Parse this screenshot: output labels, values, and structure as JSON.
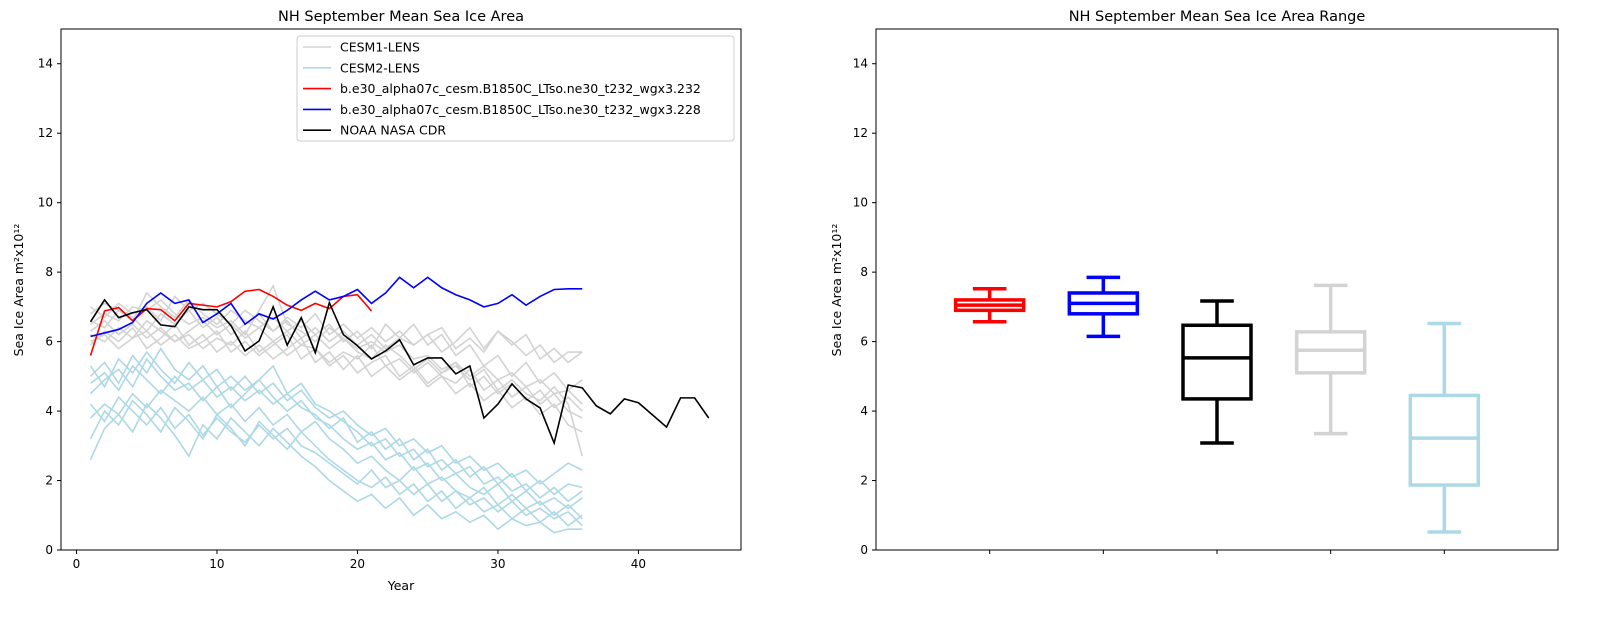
{
  "chart_data": [
    {
      "type": "line",
      "title": "NH September Mean Sea Ice Area",
      "xlabel": "Year",
      "ylabel": "Sea Ice Area m²x10¹²",
      "xlim": [
        -1.1,
        47.3
      ],
      "ylim": [
        0,
        15
      ],
      "xticks": [
        0,
        10,
        20,
        30,
        40
      ],
      "yticks": [
        0,
        2,
        4,
        6,
        8,
        10,
        12,
        14
      ],
      "grid": false,
      "legend_position": "top-center",
      "legend": [
        {
          "label": "CESM1-LENS",
          "color": "#d3d3d3"
        },
        {
          "label": "CESM2-LENS",
          "color": "#add8e6"
        },
        {
          "label": "b.e30_alpha07c_cesm.B1850C_LTso.ne30_t232_wgx3.232",
          "color": "#ff0000"
        },
        {
          "label": "b.e30_alpha07c_cesm.B1850C_LTso.ne30_t232_wgx3.228",
          "color": "#0000ff"
        },
        {
          "label": "NOAA NASA CDR",
          "color": "#000000"
        }
      ],
      "ensembles": [
        {
          "name": "CESM1-LENS",
          "color": "#d3d3d3",
          "members": [
            [
              6.5,
              6.8,
              6.6,
              7.0,
              6.9,
              7.2,
              6.8,
              6.5,
              6.7,
              6.4,
              6.6,
              6.2,
              6.9,
              7.6,
              6.5,
              6.3,
              6.0,
              6.4,
              6.1,
              5.8,
              6.0,
              5.7,
              5.9,
              5.5,
              5.6,
              5.2,
              5.4,
              5.0,
              5.3,
              4.9,
              5.1,
              4.7,
              4.9,
              4.5,
              4.6,
              4.2
            ],
            [
              6.2,
              6.0,
              6.4,
              6.1,
              6.6,
              6.3,
              6.0,
              6.2,
              5.8,
              6.1,
              5.9,
              6.3,
              5.7,
              6.0,
              5.6,
              5.9,
              5.8,
              5.4,
              5.7,
              5.5,
              5.9,
              5.3,
              5.5,
              5.1,
              5.4,
              5.0,
              4.8,
              5.2,
              4.6,
              4.9,
              4.4,
              4.7,
              4.2,
              4.5,
              4.0,
              3.8
            ],
            [
              6.8,
              7.1,
              6.9,
              6.6,
              7.4,
              7.0,
              6.7,
              7.2,
              6.8,
              6.5,
              6.9,
              6.6,
              6.4,
              6.7,
              6.3,
              6.6,
              6.2,
              6.5,
              6.0,
              6.3,
              5.8,
              6.5,
              6.1,
              5.9,
              6.2,
              5.7,
              6.0,
              6.4,
              5.8,
              6.3,
              6.0,
              5.6,
              5.9,
              5.4,
              5.7,
              5.7
            ],
            [
              5.9,
              6.3,
              6.0,
              6.4,
              5.8,
              6.1,
              6.5,
              5.9,
              6.2,
              5.7,
              6.0,
              5.6,
              5.9,
              5.5,
              5.8,
              6.1,
              5.4,
              5.7,
              5.2,
              5.6,
              5.0,
              5.3,
              4.9,
              5.2,
              4.7,
              5.0,
              4.5,
              4.8,
              4.3,
              4.6,
              4.1,
              4.4,
              3.9,
              4.2,
              3.6,
              3.4
            ],
            [
              6.6,
              6.4,
              6.9,
              6.7,
              6.3,
              6.8,
              6.5,
              6.9,
              6.4,
              6.7,
              6.2,
              6.5,
              6.8,
              6.3,
              6.6,
              6.1,
              6.4,
              6.0,
              6.3,
              5.9,
              6.2,
              5.8,
              6.1,
              6.5,
              5.9,
              6.2,
              5.6,
              5.9,
              5.3,
              5.6,
              5.0,
              5.4,
              4.8,
              5.1,
              4.6,
              4.9
            ],
            [
              6.0,
              6.2,
              5.8,
              6.1,
              6.3,
              5.9,
              6.2,
              5.8,
              6.0,
              6.3,
              5.7,
              6.0,
              5.6,
              5.9,
              6.2,
              5.5,
              5.8,
              5.3,
              5.6,
              5.1,
              5.4,
              5.6,
              5.0,
              5.3,
              4.8,
              5.1,
              5.4,
              4.7,
              5.0,
              4.5,
              4.8,
              4.3,
              4.6,
              4.1,
              4.4,
              4.0
            ],
            [
              7.0,
              6.7,
              7.1,
              6.8,
              7.0,
              6.6,
              7.3,
              6.9,
              7.1,
              6.8,
              6.5,
              6.9,
              6.6,
              6.3,
              6.7,
              6.4,
              6.8,
              6.2,
              6.5,
              6.1,
              6.4,
              6.0,
              6.3,
              5.9,
              6.2,
              6.4,
              5.8,
              6.1,
              5.7,
              6.3,
              5.9,
              6.2,
              5.5,
              5.8,
              5.4,
              5.7
            ],
            [
              6.3,
              6.6,
              6.2,
              6.5,
              6.1,
              6.4,
              6.0,
              6.3,
              6.6,
              6.2,
              6.5,
              6.1,
              6.4,
              6.0,
              6.3,
              5.9,
              6.2,
              5.8,
              6.1,
              5.7,
              5.5,
              5.9,
              5.6,
              5.2,
              5.5,
              5.1,
              5.3,
              4.9,
              5.2,
              4.6,
              4.9,
              4.5,
              4.3,
              4.7,
              4.2,
              2.7
            ]
          ]
        },
        {
          "name": "CESM2-LENS",
          "color": "#add8e6",
          "members": [
            [
              4.5,
              4.9,
              5.2,
              4.7,
              5.5,
              5.0,
              4.6,
              4.8,
              4.3,
              4.7,
              4.1,
              4.5,
              4.9,
              4.4,
              4.0,
              4.3,
              3.8,
              3.6,
              3.2,
              2.9,
              3.1,
              2.6,
              2.8,
              2.3,
              2.5,
              2.0,
              2.2,
              1.8,
              1.6,
              1.9,
              1.4,
              1.7,
              1.3,
              1.5,
              1.2,
              1.5
            ],
            [
              3.8,
              4.2,
              3.9,
              4.5,
              4.1,
              4.6,
              4.3,
              4.0,
              4.4,
              3.9,
              4.2,
              3.7,
              4.1,
              3.6,
              3.9,
              3.4,
              3.7,
              3.2,
              2.9,
              2.5,
              2.7,
              2.3,
              2.0,
              2.4,
              1.9,
              2.1,
              1.7,
              1.5,
              1.8,
              1.3,
              1.6,
              1.2,
              1.4,
              1.0,
              1.3,
              0.9
            ],
            [
              5.0,
              5.4,
              4.8,
              5.6,
              5.1,
              5.8,
              5.2,
              4.9,
              5.3,
              4.7,
              5.0,
              4.6,
              4.9,
              5.3,
              4.5,
              4.8,
              4.2,
              4.0,
              3.7,
              3.4,
              3.0,
              3.2,
              2.7,
              2.9,
              2.4,
              2.6,
              2.2,
              2.4,
              1.9,
              2.1,
              1.7,
              1.9,
              1.5,
              1.8,
              1.4,
              1.7
            ],
            [
              4.2,
              3.7,
              4.4,
              4.0,
              3.6,
              4.1,
              3.5,
              3.9,
              3.3,
              3.8,
              3.4,
              3.1,
              3.6,
              3.2,
              3.5,
              3.0,
              2.8,
              2.5,
              2.2,
              1.9,
              2.3,
              1.8,
              2.0,
              1.6,
              1.9,
              1.4,
              1.7,
              1.3,
              1.5,
              1.1,
              1.4,
              1.0,
              1.2,
              0.9,
              1.1,
              0.7
            ],
            [
              4.8,
              5.1,
              4.6,
              5.3,
              4.9,
              4.5,
              5.0,
              4.6,
              4.9,
              4.4,
              4.7,
              4.3,
              4.6,
              4.2,
              4.5,
              4.1,
              3.9,
              3.5,
              3.8,
              3.1,
              3.4,
              2.9,
              3.2,
              2.6,
              2.9,
              2.3,
              2.6,
              2.1,
              2.4,
              1.9,
              2.2,
              1.7,
              2.0,
              1.6,
              1.9,
              1.8
            ],
            [
              3.2,
              4.0,
              3.6,
              4.3,
              3.9,
              3.4,
              4.1,
              3.7,
              3.2,
              3.9,
              3.5,
              3.0,
              3.7,
              3.3,
              2.9,
              3.4,
              3.0,
              2.6,
              2.3,
              2.0,
              1.8,
              2.1,
              1.6,
              1.9,
              1.4,
              1.7,
              1.2,
              1.5,
              1.1,
              1.3,
              0.9,
              1.2,
              0.8,
              1.1,
              0.7,
              1.0
            ],
            [
              5.3,
              4.7,
              5.5,
              5.1,
              5.7,
              5.2,
              4.8,
              5.4,
              4.9,
              5.2,
              4.6,
              5.0,
              4.5,
              4.8,
              4.3,
              4.6,
              4.1,
              3.8,
              4.0,
              3.6,
              3.3,
              3.5,
              3.0,
              3.2,
              2.8,
              3.0,
              2.5,
              2.7,
              2.3,
              2.5,
              2.1,
              2.3,
              1.9,
              2.2,
              2.5,
              2.3
            ],
            [
              2.6,
              3.5,
              3.9,
              3.4,
              4.2,
              3.8,
              3.3,
              2.7,
              3.6,
              3.2,
              3.8,
              3.4,
              3.0,
              3.5,
              3.1,
              2.7,
              2.4,
              2.0,
              1.7,
              1.4,
              1.6,
              1.2,
              1.5,
              1.0,
              1.3,
              0.9,
              1.1,
              0.8,
              1.0,
              0.6,
              0.9,
              0.7,
              0.8,
              0.5,
              0.6,
              0.6
            ]
          ]
        }
      ],
      "series": [
        {
          "name": "b.e30_alpha07c_cesm.B1850C_LTso.ne30_t232_wgx3.232",
          "color": "#ff0000",
          "values": [
            5.6,
            6.88,
            6.98,
            6.6,
            6.95,
            6.92,
            6.6,
            7.1,
            7.05,
            7.0,
            7.15,
            7.45,
            7.5,
            7.3,
            7.05,
            6.9,
            7.1,
            6.95,
            7.3,
            7.35,
            6.88
          ]
        },
        {
          "name": "b.e30_alpha07c_cesm.B1850C_LTso.ne30_t232_wgx3.228",
          "color": "#0000ff",
          "values": [
            6.15,
            6.25,
            6.35,
            6.55,
            7.1,
            7.4,
            7.1,
            7.2,
            6.55,
            6.8,
            7.1,
            6.5,
            6.8,
            6.65,
            6.9,
            7.2,
            7.45,
            7.2,
            7.3,
            7.5,
            7.1,
            7.4,
            7.85,
            7.55,
            7.85,
            7.55,
            7.35,
            7.2,
            7.0,
            7.1,
            7.35,
            7.05,
            7.3,
            7.5,
            7.52,
            7.52
          ]
        },
        {
          "name": "NOAA NASA CDR",
          "color": "#000000",
          "values": [
            6.57,
            7.2,
            6.69,
            6.83,
            6.92,
            6.48,
            6.43,
            7.0,
            6.92,
            6.92,
            6.46,
            5.73,
            6.02,
            7.0,
            5.9,
            6.69,
            5.68,
            7.12,
            6.2,
            5.88,
            5.5,
            5.73,
            6.05,
            5.33,
            5.53,
            5.53,
            5.07,
            5.3,
            3.8,
            4.2,
            4.78,
            4.35,
            4.09,
            3.08,
            4.75,
            4.67,
            4.15,
            3.92,
            4.35,
            4.24,
            3.89,
            3.54,
            4.38,
            4.38,
            3.8
          ]
        }
      ]
    },
    {
      "type": "box",
      "title": "NH September Mean Sea Ice Area Range",
      "xlabel": "",
      "ylabel": "Sea Ice Area m²x10¹²",
      "ylim": [
        0,
        15
      ],
      "xlim": [
        0,
        6
      ],
      "yticks": [
        0,
        2,
        4,
        6,
        8,
        10,
        12,
        14
      ],
      "grid": false,
      "boxes": [
        {
          "color": "#ff0000",
          "min": 6.57,
          "q1": 6.9,
          "median": 7.05,
          "q3": 7.2,
          "max": 7.52
        },
        {
          "color": "#0000ff",
          "min": 6.15,
          "q1": 6.8,
          "median": 7.1,
          "q3": 7.4,
          "max": 7.85
        },
        {
          "color": "#000000",
          "min": 3.08,
          "q1": 4.35,
          "median": 5.53,
          "q3": 6.47,
          "max": 7.17
        },
        {
          "color": "#d3d3d3",
          "min": 3.35,
          "q1": 5.1,
          "median": 5.75,
          "q3": 6.28,
          "max": 7.62
        },
        {
          "color": "#add8e6",
          "min": 0.52,
          "q1": 1.87,
          "median": 3.22,
          "q3": 4.45,
          "max": 6.52
        }
      ]
    }
  ]
}
